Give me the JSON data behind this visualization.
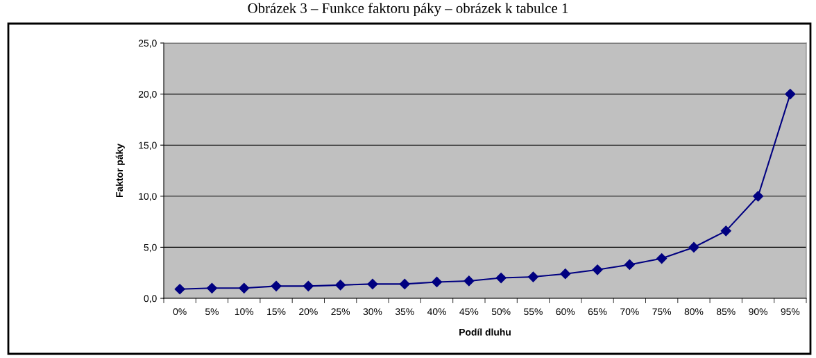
{
  "chart_data": {
    "type": "line",
    "title": "Obrázek 3 – Funkce faktoru páky – obrázek k tabulce 1",
    "xlabel": "Podíl dluhu",
    "ylabel": "Faktor páky",
    "categories": [
      "0%",
      "5%",
      "10%",
      "15%",
      "20%",
      "25%",
      "30%",
      "35%",
      "40%",
      "45%",
      "50%",
      "55%",
      "60%",
      "65%",
      "70%",
      "75%",
      "80%",
      "85%",
      "90%",
      "95%"
    ],
    "series": [
      {
        "color": "#000080",
        "values": [
          0.9,
          1.0,
          1.0,
          1.2,
          1.2,
          1.3,
          1.4,
          1.4,
          1.6,
          1.7,
          2.0,
          2.1,
          2.4,
          2.8,
          3.3,
          3.9,
          5.0,
          6.6,
          10.0,
          20.0
        ]
      }
    ],
    "ylim": [
      0,
      25
    ],
    "yticks": [
      {
        "value": 0,
        "label": "0,0"
      },
      {
        "value": 5,
        "label": "5,0"
      },
      {
        "value": 10,
        "label": "10,0"
      },
      {
        "value": 15,
        "label": "15,0"
      },
      {
        "value": 20,
        "label": "20,0"
      },
      {
        "value": 25,
        "label": "25,0"
      }
    ],
    "grid": "y",
    "legend": false,
    "marker": "diamond",
    "line_style": "solid"
  }
}
